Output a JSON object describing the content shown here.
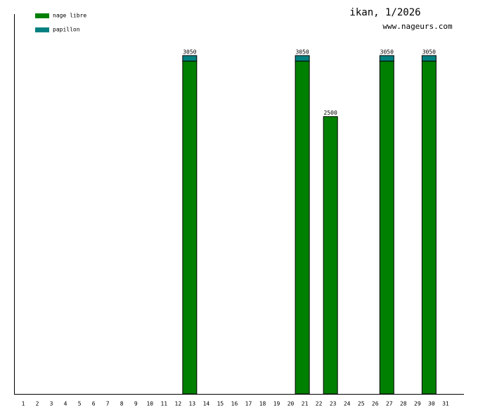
{
  "chart_data": {
    "type": "stacked-bar",
    "title": "ikan, 1/2026",
    "subtitle": "www.nageurs.com",
    "categories": [
      "1",
      "2",
      "3",
      "4",
      "5",
      "6",
      "7",
      "8",
      "9",
      "10",
      "11",
      "12",
      "13",
      "14",
      "15",
      "16",
      "17",
      "18",
      "19",
      "20",
      "21",
      "22",
      "23",
      "24",
      "25",
      "26",
      "27",
      "28",
      "29",
      "30",
      "31"
    ],
    "series": [
      {
        "name": "nage libre",
        "color": "#008000",
        "values": [
          null,
          null,
          null,
          null,
          null,
          null,
          null,
          null,
          null,
          null,
          null,
          null,
          3000,
          null,
          null,
          null,
          null,
          null,
          null,
          null,
          3000,
          null,
          2500,
          null,
          null,
          null,
          3000,
          null,
          null,
          3000,
          null
        ]
      },
      {
        "name": "papillon",
        "color": "#008080",
        "values": [
          null,
          null,
          null,
          null,
          null,
          null,
          null,
          null,
          null,
          null,
          null,
          null,
          50,
          null,
          null,
          null,
          null,
          null,
          null,
          null,
          50,
          null,
          0,
          null,
          null,
          null,
          50,
          null,
          null,
          50,
          null
        ]
      }
    ],
    "totals": [
      null,
      null,
      null,
      null,
      null,
      null,
      null,
      null,
      null,
      null,
      null,
      null,
      3050,
      null,
      null,
      null,
      null,
      null,
      null,
      null,
      3050,
      null,
      2500,
      null,
      null,
      null,
      3050,
      null,
      null,
      3050,
      null
    ],
    "ylim": [
      0,
      3424
    ],
    "legend": "top-left"
  }
}
